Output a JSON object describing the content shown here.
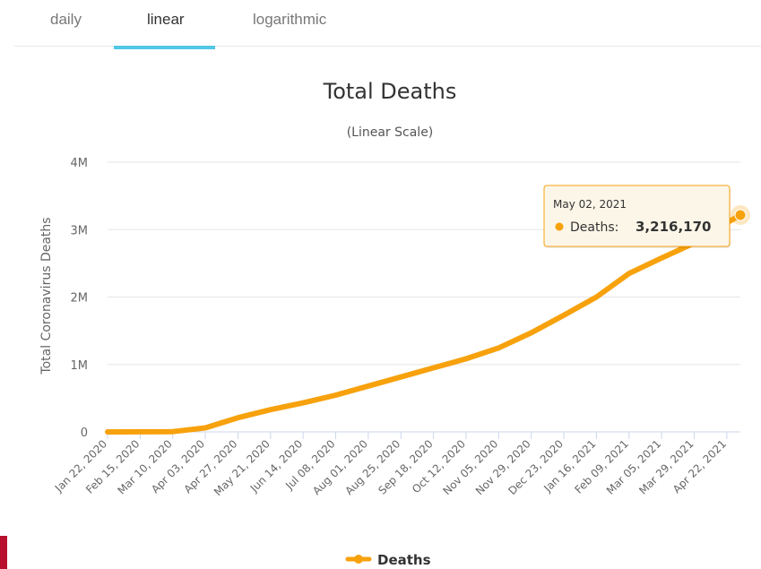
{
  "tabs": [
    {
      "label": "daily",
      "active": false
    },
    {
      "label": "linear",
      "active": true
    },
    {
      "label": "logarithmic",
      "active": false
    }
  ],
  "colors": {
    "accent": "#52c7e6",
    "series": "#f7a10c",
    "side_bar": "#b8102d"
  },
  "chart_data": {
    "type": "line",
    "title": "Total Deaths",
    "subtitle": "(Linear Scale)",
    "ylabel": "Total Coronavirus Deaths",
    "xlabel": "",
    "ylim": [
      0,
      4000000
    ],
    "y_ticks": [
      {
        "value": 0,
        "label": "0"
      },
      {
        "value": 1000000,
        "label": "1M"
      },
      {
        "value": 2000000,
        "label": "2M"
      },
      {
        "value": 3000000,
        "label": "3M"
      },
      {
        "value": 4000000,
        "label": "4M"
      }
    ],
    "x_tick_labels": [
      "Jan 22, 2020",
      "Feb 15, 2020",
      "Mar 10, 2020",
      "Apr 03, 2020",
      "Apr 27, 2020",
      "May 21, 2020",
      "Jun 14, 2020",
      "Jul 08, 2020",
      "Aug 01, 2020",
      "Aug 25, 2020",
      "Sep 18, 2020",
      "Oct 12, 2020",
      "Nov 05, 2020",
      "Nov 29, 2020",
      "Dec 23, 2020",
      "Jan 16, 2021",
      "Feb 09, 2021",
      "Mar 05, 2021",
      "Mar 29, 2021",
      "Apr 22, 2021"
    ],
    "grid": true,
    "legend": "bottom-center",
    "series": [
      {
        "name": "Deaths",
        "color": "#f7a10c",
        "points": [
          {
            "x": "Jan 22, 2020",
            "y": 17
          },
          {
            "x": "Feb 15, 2020",
            "y": 1500
          },
          {
            "x": "Mar 10, 2020",
            "y": 4300
          },
          {
            "x": "Apr 03, 2020",
            "y": 60000
          },
          {
            "x": "Apr 27, 2020",
            "y": 210000
          },
          {
            "x": "May 21, 2020",
            "y": 330000
          },
          {
            "x": "Jun 14, 2020",
            "y": 430000
          },
          {
            "x": "Jul 08, 2020",
            "y": 545000
          },
          {
            "x": "Aug 01, 2020",
            "y": 680000
          },
          {
            "x": "Aug 25, 2020",
            "y": 815000
          },
          {
            "x": "Sep 18, 2020",
            "y": 950000
          },
          {
            "x": "Oct 12, 2020",
            "y": 1085000
          },
          {
            "x": "Nov 05, 2020",
            "y": 1245000
          },
          {
            "x": "Nov 29, 2020",
            "y": 1470000
          },
          {
            "x": "Dec 23, 2020",
            "y": 1730000
          },
          {
            "x": "Jan 16, 2021",
            "y": 2000000
          },
          {
            "x": "Feb 09, 2021",
            "y": 2350000
          },
          {
            "x": "Mar 05, 2021",
            "y": 2580000
          },
          {
            "x": "Mar 29, 2021",
            "y": 2800000
          },
          {
            "x": "Apr 22, 2021",
            "y": 3100000
          },
          {
            "x": "May 02, 2021",
            "y": 3216170
          }
        ]
      }
    ],
    "tooltip": {
      "date": "May 02, 2021",
      "series_label": "Deaths:",
      "value": "3,216,170"
    }
  }
}
